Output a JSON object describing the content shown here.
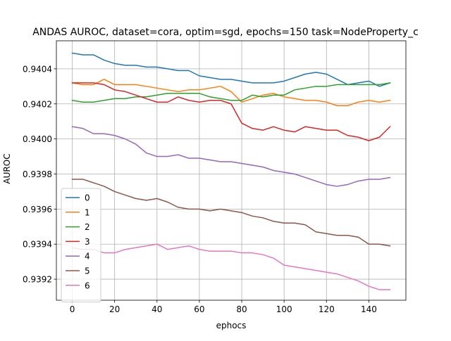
{
  "chart_data": {
    "type": "line",
    "title": "ANDAS AUROC, dataset=cora, optim=sgd, epochs=150 task=NodeProperty_c",
    "xlabel": "ephocs",
    "ylabel": "AUROC",
    "xlim": [
      -7.5,
      157.5
    ],
    "ylim": [
      0.93908,
      0.94056
    ],
    "x_ticks": [
      0,
      20,
      40,
      60,
      80,
      100,
      120,
      140
    ],
    "x_tick_labels": [
      "0",
      "20",
      "40",
      "60",
      "80",
      "100",
      "120",
      "140"
    ],
    "y_ticks": [
      0.9392,
      0.9394,
      0.9396,
      0.9398,
      0.94,
      0.9402,
      0.9404
    ],
    "y_tick_labels": [
      "0.9392",
      "0.9394",
      "0.9396",
      "0.9398",
      "0.9400",
      "0.9402",
      "0.9404"
    ],
    "grid": true,
    "legend_position": "lower-left",
    "series": [
      {
        "name": "0",
        "color": "#1f77b4",
        "x": [
          0,
          5,
          10,
          15,
          20,
          25,
          30,
          35,
          40,
          45,
          50,
          55,
          60,
          65,
          70,
          75,
          80,
          85,
          90,
          95,
          100,
          105,
          110,
          115,
          120,
          125,
          130,
          135,
          140,
          145,
          150
        ],
        "values": [
          0.94049,
          0.94048,
          0.94048,
          0.94045,
          0.94043,
          0.94042,
          0.94042,
          0.94041,
          0.94041,
          0.9404,
          0.94039,
          0.94039,
          0.94036,
          0.94035,
          0.94034,
          0.94034,
          0.94033,
          0.94032,
          0.94032,
          0.94032,
          0.94033,
          0.94035,
          0.94037,
          0.94038,
          0.94037,
          0.94034,
          0.94031,
          0.94032,
          0.94033,
          0.9403,
          0.94032
        ]
      },
      {
        "name": "1",
        "color": "#ff7f0e",
        "x": [
          0,
          5,
          10,
          15,
          20,
          25,
          30,
          35,
          40,
          45,
          50,
          55,
          60,
          65,
          70,
          75,
          80,
          85,
          90,
          95,
          100,
          105,
          110,
          115,
          120,
          125,
          130,
          135,
          140,
          145,
          150
        ],
        "values": [
          0.94032,
          0.94031,
          0.94031,
          0.94034,
          0.94031,
          0.94031,
          0.94031,
          0.9403,
          0.94029,
          0.94028,
          0.94027,
          0.94028,
          0.94028,
          0.94029,
          0.9403,
          0.94027,
          0.94021,
          0.94023,
          0.94025,
          0.94026,
          0.94024,
          0.94023,
          0.94022,
          0.94022,
          0.94021,
          0.94019,
          0.94019,
          0.94021,
          0.94022,
          0.94021,
          0.94022
        ]
      },
      {
        "name": "2",
        "color": "#2ca02c",
        "x": [
          0,
          5,
          10,
          15,
          20,
          25,
          30,
          35,
          40,
          45,
          50,
          55,
          60,
          65,
          70,
          75,
          80,
          85,
          90,
          95,
          100,
          105,
          110,
          115,
          120,
          125,
          130,
          135,
          140,
          145,
          150
        ],
        "values": [
          0.94022,
          0.94021,
          0.94021,
          0.94022,
          0.94023,
          0.94023,
          0.94024,
          0.94024,
          0.94025,
          0.94026,
          0.94026,
          0.94026,
          0.94026,
          0.94024,
          0.94023,
          0.94022,
          0.94022,
          0.94025,
          0.94024,
          0.94025,
          0.94025,
          0.94028,
          0.94029,
          0.9403,
          0.9403,
          0.94031,
          0.94031,
          0.94031,
          0.94031,
          0.94031,
          0.94032
        ]
      },
      {
        "name": "3",
        "color": "#d62728",
        "x": [
          0,
          5,
          10,
          15,
          20,
          25,
          30,
          35,
          40,
          45,
          50,
          55,
          60,
          65,
          70,
          75,
          80,
          85,
          90,
          95,
          100,
          105,
          110,
          115,
          120,
          125,
          130,
          135,
          140,
          145,
          150
        ],
        "values": [
          0.94032,
          0.94032,
          0.94032,
          0.94031,
          0.94028,
          0.94027,
          0.94025,
          0.94023,
          0.94021,
          0.94021,
          0.94024,
          0.94022,
          0.94021,
          0.94022,
          0.94022,
          0.9402,
          0.94009,
          0.94006,
          0.94005,
          0.94007,
          0.94005,
          0.94004,
          0.94007,
          0.94006,
          0.94005,
          0.94005,
          0.94002,
          0.94001,
          0.93999,
          0.94001,
          0.94007
        ]
      },
      {
        "name": "4",
        "color": "#9467bd",
        "x": [
          0,
          5,
          10,
          15,
          20,
          25,
          30,
          35,
          40,
          45,
          50,
          55,
          60,
          65,
          70,
          75,
          80,
          85,
          90,
          95,
          100,
          105,
          110,
          115,
          120,
          125,
          130,
          135,
          140,
          145,
          150
        ],
        "values": [
          0.94007,
          0.94006,
          0.94003,
          0.94003,
          0.94002,
          0.94,
          0.93997,
          0.93992,
          0.9399,
          0.9399,
          0.93991,
          0.93989,
          0.93989,
          0.93988,
          0.93987,
          0.93987,
          0.93986,
          0.93985,
          0.93984,
          0.93982,
          0.93981,
          0.9398,
          0.93978,
          0.93976,
          0.93974,
          0.93973,
          0.93974,
          0.93976,
          0.93977,
          0.93977,
          0.93978
        ]
      },
      {
        "name": "5",
        "color": "#8c564b",
        "x": [
          0,
          5,
          10,
          15,
          20,
          25,
          30,
          35,
          40,
          45,
          50,
          55,
          60,
          65,
          70,
          75,
          80,
          85,
          90,
          95,
          100,
          105,
          110,
          115,
          120,
          125,
          130,
          135,
          140,
          145,
          150
        ],
        "values": [
          0.93977,
          0.93977,
          0.93975,
          0.93973,
          0.9397,
          0.93968,
          0.93966,
          0.93965,
          0.93966,
          0.93964,
          0.93961,
          0.9396,
          0.9396,
          0.93959,
          0.9396,
          0.93959,
          0.93958,
          0.93956,
          0.93955,
          0.93953,
          0.93952,
          0.93952,
          0.93951,
          0.93947,
          0.93946,
          0.93945,
          0.93945,
          0.93944,
          0.9394,
          0.9394,
          0.93939
        ]
      },
      {
        "name": "6",
        "color": "#e377c2",
        "x": [
          0,
          5,
          10,
          15,
          20,
          25,
          30,
          35,
          40,
          45,
          50,
          55,
          60,
          65,
          70,
          75,
          80,
          85,
          90,
          95,
          100,
          105,
          110,
          115,
          120,
          125,
          130,
          135,
          140,
          145,
          150
        ],
        "values": [
          0.93938,
          0.93937,
          0.93937,
          0.93935,
          0.93935,
          0.93937,
          0.93938,
          0.93939,
          0.9394,
          0.93937,
          0.93938,
          0.93939,
          0.93937,
          0.93936,
          0.93936,
          0.93936,
          0.93935,
          0.93935,
          0.93934,
          0.93932,
          0.93928,
          0.93927,
          0.93926,
          0.93925,
          0.93924,
          0.93923,
          0.93921,
          0.93919,
          0.93916,
          0.93914,
          0.93914
        ]
      }
    ]
  }
}
